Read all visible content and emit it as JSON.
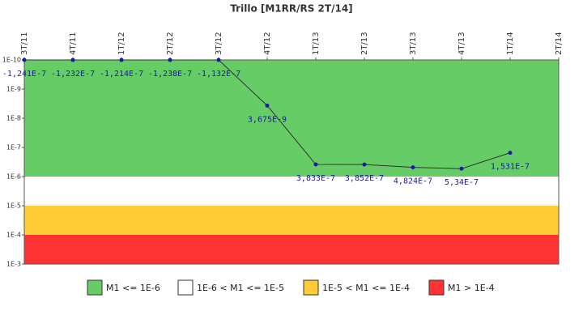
{
  "chart_data": {
    "type": "line",
    "title": "Trillo [M1RR/RS 2T/14]",
    "categories": [
      "3T/11",
      "4T/11",
      "1T/12",
      "2T/12",
      "3T/12",
      "4T/12",
      "1T/13",
      "2T/13",
      "3T/13",
      "4T/13",
      "1T/14",
      "2T/14"
    ],
    "series": [
      {
        "name": "M1",
        "color": "#333333",
        "marker_color": "#1a1aa6",
        "values": [
          -1.241e-07,
          -1.232e-07,
          -1.214e-07,
          -1.238e-07,
          -1.132e-07,
          3.675e-09,
          3.833e-07,
          3.852e-07,
          4.824e-07,
          5.34e-07,
          1.531e-07,
          null
        ],
        "value_labels": [
          "-1,241E-7",
          "-1,232E-7",
          "-1,214E-7",
          "-1,238E-7",
          "-1,132E-7",
          "3,675E-9",
          "3,833E-7",
          "3,852E-7",
          "4,824E-7",
          "5,34E-7",
          "1,531E-7",
          null
        ]
      }
    ],
    "ylim": [
      1e-10,
      0.001
    ],
    "log_scale": true,
    "y_inverted": true,
    "yticks": [
      {
        "value": 1e-10,
        "label": "1E-10"
      },
      {
        "value": 1e-09,
        "label": "1E-9"
      },
      {
        "value": 1e-08,
        "label": "1E-8"
      },
      {
        "value": 1e-07,
        "label": "1E-7"
      },
      {
        "value": 1e-06,
        "label": "1E-6"
      },
      {
        "value": 1e-05,
        "label": "1E-5"
      },
      {
        "value": 0.0001,
        "label": "1E-4"
      },
      {
        "value": 0.001,
        "label": "1E-3"
      }
    ],
    "bands": [
      {
        "name": "M1 <= 1E-6",
        "from": 1e-10,
        "to": 1e-06,
        "color": "#66cc66"
      },
      {
        "name": "1E-6 < M1 <= 1E-5",
        "from": 1e-06,
        "to": 1e-05,
        "color": "#ffffff"
      },
      {
        "name": "1E-5 < M1 <= 1E-4",
        "from": 1e-05,
        "to": 0.0001,
        "color": "#ffcc33"
      },
      {
        "name": "M1 > 1E-4",
        "from": 0.0001,
        "to": 0.001,
        "color": "#ff3333"
      }
    ]
  }
}
